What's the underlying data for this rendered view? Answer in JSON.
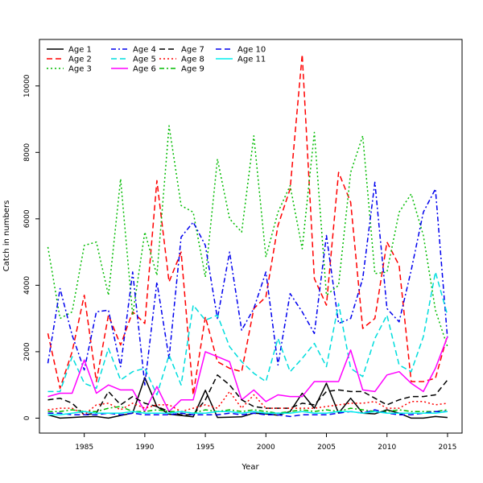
{
  "chart_data": {
    "type": "line",
    "title": "",
    "xlabel": "Year",
    "ylabel": "Catch in numbers",
    "xlim": [
      1981.3,
      2016.2
    ],
    "ylim": [
      -450,
      11400
    ],
    "x_ticks": [
      1985,
      1990,
      1995,
      2000,
      2005,
      2010,
      2015
    ],
    "y_ticks": [
      0,
      2000,
      4000,
      6000,
      8000,
      10000
    ],
    "legend_position": "top-left",
    "grid": false,
    "x": [
      1982,
      1983,
      1984,
      1985,
      1986,
      1987,
      1988,
      1989,
      1990,
      1991,
      1992,
      1993,
      1994,
      1995,
      1996,
      1997,
      1998,
      1999,
      2000,
      2001,
      2002,
      2003,
      2004,
      2005,
      2006,
      2007,
      2008,
      2009,
      2010,
      2011,
      2012,
      2013,
      2014,
      2015
    ],
    "series": [
      {
        "name": "Age 1",
        "color": "#000000",
        "dash": "solid",
        "values": [
          100,
          0,
          20,
          40,
          50,
          0,
          80,
          150,
          1220,
          350,
          120,
          80,
          40,
          840,
          20,
          30,
          40,
          150,
          130,
          90,
          200,
          750,
          300,
          1050,
          150,
          600,
          150,
          130,
          250,
          150,
          0,
          0,
          50,
          20
        ]
      },
      {
        "name": "Age 2",
        "color": "#ff0000",
        "dash": "long",
        "values": [
          2550,
          900,
          2000,
          3700,
          1100,
          3100,
          2200,
          3200,
          2850,
          7150,
          4100,
          5000,
          700,
          3050,
          1700,
          1500,
          1400,
          3300,
          3650,
          5800,
          6900,
          10950,
          4200,
          3400,
          7400,
          6500,
          2700,
          3000,
          5300,
          4600,
          1100,
          1100,
          1200,
          2500
        ]
      },
      {
        "name": "Age 3",
        "color": "#00bb00",
        "dash": "dot",
        "values": [
          5150,
          3000,
          3200,
          5200,
          5300,
          3700,
          7200,
          3100,
          5600,
          4300,
          8800,
          6400,
          6200,
          4250,
          7800,
          6000,
          5600,
          8500,
          4850,
          6200,
          7000,
          5100,
          8600,
          3700,
          4000,
          7400,
          8500,
          4350,
          4400,
          6200,
          6750,
          5500,
          3250,
          2150
        ]
      },
      {
        "name": "Age 4",
        "color": "#0000ee",
        "dash": "dashdot",
        "values": [
          1650,
          3900,
          2500,
          1450,
          3200,
          3250,
          1550,
          4400,
          1000,
          4100,
          1800,
          5450,
          5900,
          5200,
          3000,
          5000,
          2650,
          3300,
          4400,
          1600,
          3750,
          3200,
          2550,
          5500,
          2850,
          3000,
          4200,
          7100,
          3300,
          2900,
          4450,
          6200,
          6900,
          2400
        ]
      },
      {
        "name": "Age 5",
        "color": "#00dddd",
        "dash": "long",
        "values": [
          800,
          800,
          1850,
          1050,
          900,
          2100,
          1150,
          1400,
          1500,
          700,
          1900,
          1000,
          3400,
          2950,
          3100,
          2150,
          1700,
          1350,
          1100,
          2400,
          1400,
          1800,
          2250,
          1550,
          3450,
          1500,
          1250,
          2400,
          3100,
          1600,
          1400,
          2450,
          4400,
          3100
        ]
      },
      {
        "name": "Age 6",
        "color": "#ff00ff",
        "dash": "solid",
        "values": [
          650,
          750,
          750,
          1750,
          750,
          1000,
          850,
          850,
          200,
          950,
          200,
          550,
          550,
          2000,
          1850,
          1700,
          550,
          850,
          500,
          700,
          650,
          650,
          1100,
          1100,
          1100,
          2050,
          850,
          800,
          1300,
          1400,
          1050,
          800,
          1500,
          2450
        ]
      },
      {
        "name": "Age 7",
        "color": "#000000",
        "dash": "long",
        "values": [
          550,
          600,
          450,
          100,
          150,
          800,
          400,
          650,
          450,
          350,
          200,
          100,
          100,
          550,
          1300,
          1000,
          550,
          350,
          300,
          300,
          300,
          450,
          400,
          800,
          850,
          800,
          800,
          600,
          400,
          550,
          650,
          650,
          700,
          1150
        ]
      },
      {
        "name": "Age 8",
        "color": "#ff0000",
        "dash": "dot",
        "values": [
          250,
          300,
          300,
          100,
          400,
          450,
          250,
          450,
          300,
          400,
          400,
          200,
          300,
          400,
          300,
          800,
          300,
          700,
          300,
          300,
          300,
          300,
          300,
          350,
          400,
          450,
          450,
          500,
          300,
          300,
          500,
          500,
          400,
          450
        ]
      },
      {
        "name": "Age 9",
        "color": "#00bb00",
        "dash": "dashdot",
        "values": [
          200,
          200,
          250,
          200,
          200,
          300,
          350,
          200,
          200,
          250,
          200,
          200,
          150,
          250,
          200,
          250,
          200,
          250,
          200,
          150,
          200,
          250,
          200,
          250,
          200,
          300,
          250,
          200,
          200,
          250,
          200,
          200,
          200,
          250
        ]
      },
      {
        "name": "Age 10",
        "color": "#0000ee",
        "dash": "long",
        "values": [
          150,
          150,
          100,
          100,
          100,
          150,
          100,
          150,
          100,
          100,
          100,
          150,
          100,
          100,
          100,
          150,
          100,
          150,
          100,
          100,
          50,
          100,
          100,
          100,
          150,
          200,
          150,
          250,
          150,
          100,
          100,
          150,
          200,
          200
        ]
      },
      {
        "name": "Age 11",
        "color": "#00eeee",
        "dash": "solid",
        "values": [
          100,
          100,
          150,
          200,
          150,
          150,
          150,
          200,
          150,
          150,
          150,
          200,
          150,
          150,
          200,
          200,
          150,
          200,
          150,
          150,
          150,
          200,
          150,
          150,
          200,
          200,
          150,
          200,
          150,
          150,
          150,
          150,
          150,
          200
        ]
      }
    ]
  }
}
